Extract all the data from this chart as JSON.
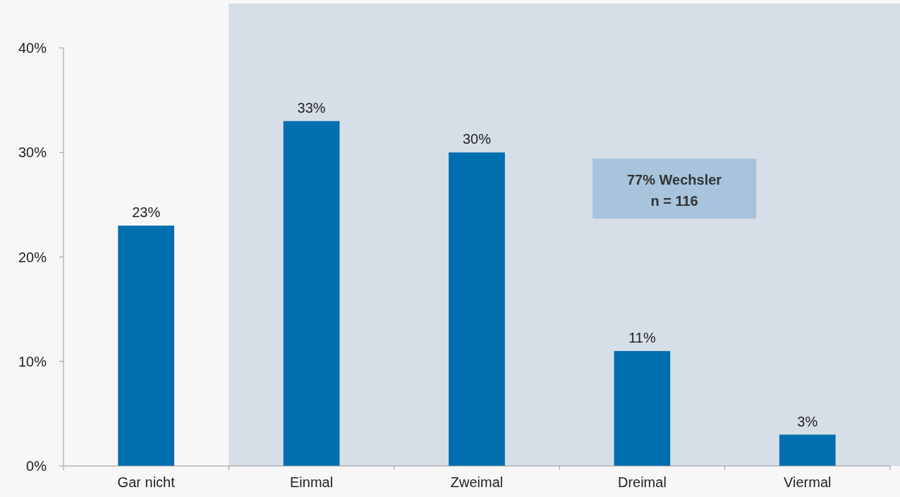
{
  "chart_data": {
    "type": "bar",
    "categories": [
      "Gar nicht",
      "Einmal",
      "Zweimal",
      "Dreimal",
      "Viermal"
    ],
    "values": [
      23,
      33,
      30,
      11,
      3
    ],
    "color": "#006eaf",
    "value_labels": [
      "23%",
      "33%",
      "30%",
      "11%",
      "3%"
    ],
    "ylim": [
      0,
      40
    ],
    "yticks": [
      {
        "value": 0,
        "label": "0%"
      },
      {
        "value": 10,
        "label": "10%"
      },
      {
        "value": 20,
        "label": "20%"
      },
      {
        "value": 30,
        "label": "30%"
      },
      {
        "value": 40,
        "label": "40%"
      }
    ],
    "grid": false,
    "bands": [
      {
        "axis": "x",
        "from": "Einmal",
        "to": "Viermal",
        "color": "#d6dee7"
      }
    ],
    "annotations": [
      "77% Wechsler",
      "n = 116"
    ]
  }
}
